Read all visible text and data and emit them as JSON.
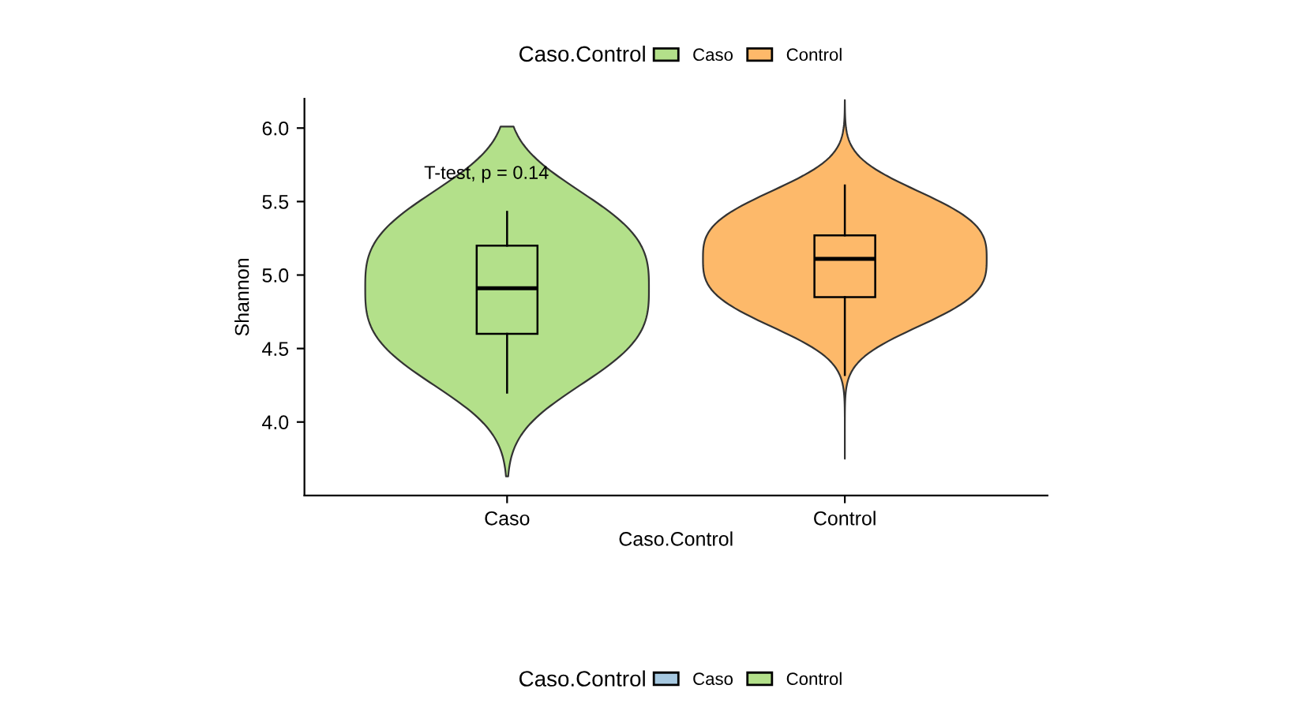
{
  "chart_data": [
    {
      "type": "box",
      "xlabel": "Caso.Control",
      "ylabel": "Shannon",
      "legend_title": "Caso.Control",
      "legend": "top",
      "categories": [
        "Caso",
        "Control"
      ],
      "series": [
        {
          "name": "Caso",
          "color": "#b3e08a",
          "boxes": [
            {
              "low": 4.2,
              "q1": 4.6,
              "median": 4.91,
              "q3": 5.2,
              "high": 5.43
            },
            null
          ]
        },
        {
          "name": "Control",
          "color": "#fdb96a",
          "boxes": [
            null,
            {
              "low": 4.32,
              "q1": 4.85,
              "median": 5.11,
              "q3": 5.27,
              "high": 5.61
            }
          ]
        }
      ],
      "ylim": [
        3.5,
        6.2
      ],
      "yticks": [
        {
          "value": 4,
          "label": "4.0"
        },
        4.5,
        {
          "value": 5,
          "label": "5.0"
        },
        5.5,
        {
          "value": 6,
          "label": "6.0"
        }
      ],
      "annotations": [
        "T-test, p = 0.14"
      ]
    },
    {
      "type": "other",
      "legend_title": "Caso.Control",
      "legend": "bottom",
      "series": [
        {
          "name": "Caso",
          "color": "#a6c8e0"
        },
        {
          "name": "Control",
          "color": "#b3e08a"
        }
      ]
    }
  ]
}
